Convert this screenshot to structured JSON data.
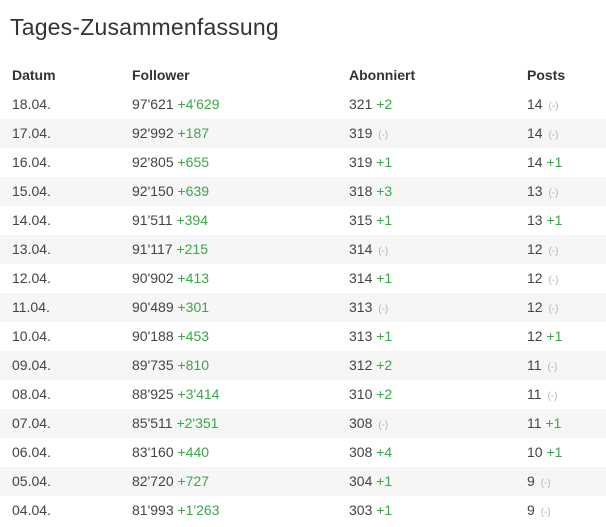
{
  "title": "Tages-Zusammenfassung",
  "colors": {
    "positive": "#3aa648",
    "neutral": "#b3b3b3",
    "stripe": "#f6f6f6"
  },
  "columns": [
    "Datum",
    "Follower",
    "Abonniert",
    "Posts"
  ],
  "rows": [
    {
      "date": "18.04.",
      "follower": "97'621",
      "follower_delta": "+4'629",
      "abo": "321",
      "abo_delta": "+2",
      "posts": "14",
      "posts_delta": "(-)"
    },
    {
      "date": "17.04.",
      "follower": "92'992",
      "follower_delta": "+187",
      "abo": "319",
      "abo_delta": "(-)",
      "posts": "14",
      "posts_delta": "(-)"
    },
    {
      "date": "16.04.",
      "follower": "92'805",
      "follower_delta": "+655",
      "abo": "319",
      "abo_delta": "+1",
      "posts": "14",
      "posts_delta": "+1"
    },
    {
      "date": "15.04.",
      "follower": "92'150",
      "follower_delta": "+639",
      "abo": "318",
      "abo_delta": "+3",
      "posts": "13",
      "posts_delta": "(-)"
    },
    {
      "date": "14.04.",
      "follower": "91'511",
      "follower_delta": "+394",
      "abo": "315",
      "abo_delta": "+1",
      "posts": "13",
      "posts_delta": "+1"
    },
    {
      "date": "13.04.",
      "follower": "91'117",
      "follower_delta": "+215",
      "abo": "314",
      "abo_delta": "(-)",
      "posts": "12",
      "posts_delta": "(-)"
    },
    {
      "date": "12.04.",
      "follower": "90'902",
      "follower_delta": "+413",
      "abo": "314",
      "abo_delta": "+1",
      "posts": "12",
      "posts_delta": "(-)"
    },
    {
      "date": "11.04.",
      "follower": "90'489",
      "follower_delta": "+301",
      "abo": "313",
      "abo_delta": "(-)",
      "posts": "12",
      "posts_delta": "(-)"
    },
    {
      "date": "10.04.",
      "follower": "90'188",
      "follower_delta": "+453",
      "abo": "313",
      "abo_delta": "+1",
      "posts": "12",
      "posts_delta": "+1"
    },
    {
      "date": "09.04.",
      "follower": "89'735",
      "follower_delta": "+810",
      "abo": "312",
      "abo_delta": "+2",
      "posts": "11",
      "posts_delta": "(-)"
    },
    {
      "date": "08.04.",
      "follower": "88'925",
      "follower_delta": "+3'414",
      "abo": "310",
      "abo_delta": "+2",
      "posts": "11",
      "posts_delta": "(-)"
    },
    {
      "date": "07.04.",
      "follower": "85'511",
      "follower_delta": "+2'351",
      "abo": "308",
      "abo_delta": "(-)",
      "posts": "11",
      "posts_delta": "+1"
    },
    {
      "date": "06.04.",
      "follower": "83'160",
      "follower_delta": "+440",
      "abo": "308",
      "abo_delta": "+4",
      "posts": "10",
      "posts_delta": "+1"
    },
    {
      "date": "05.04.",
      "follower": "82'720",
      "follower_delta": "+727",
      "abo": "304",
      "abo_delta": "+1",
      "posts": "9",
      "posts_delta": "(-)"
    },
    {
      "date": "04.04.",
      "follower": "81'993",
      "follower_delta": "+1'263",
      "abo": "303",
      "abo_delta": "+1",
      "posts": "9",
      "posts_delta": "(-)"
    }
  ]
}
